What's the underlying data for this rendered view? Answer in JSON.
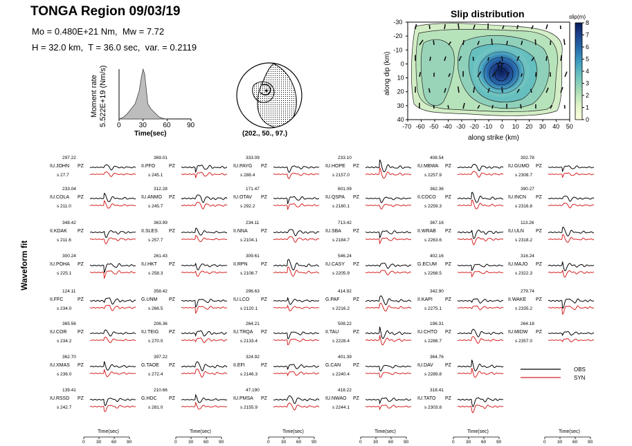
{
  "header": {
    "title": "TONGA Region 09/03/19",
    "mo_label": "Mo = 0.480E+21 Nm,",
    "mw_label": "Mw = 7.72",
    "h_label": "H = 32.0 km,",
    "t_label": "T = 36.0 sec,",
    "var_label": "var. = 0.2119"
  },
  "moment_rate": {
    "ylabel_line1": "Moment rate",
    "ylabel_line2": "5.522E+19 (Nm/s)",
    "xlabel": "Time(sec)",
    "xticks": [
      "0",
      "30",
      "60",
      "90"
    ],
    "xlim": [
      0,
      90
    ]
  },
  "mechanism": {
    "label": "(202., 50., 97.)"
  },
  "slip": {
    "title": "Slip distribution",
    "colorbar_label": "slip(m)",
    "colorbar_ticks": [
      "8",
      "7",
      "6",
      "5",
      "4",
      "3",
      "2",
      "1",
      "0"
    ],
    "xlabel": "along strike (km)",
    "ylabel": "along dip (km)",
    "xticks": [
      "-70",
      "-60",
      "-50",
      "-40",
      "-30",
      "-20",
      "-10",
      "0",
      "10",
      "20",
      "30",
      "40",
      "50"
    ],
    "yticks": [
      "-30",
      "-20",
      "-10",
      "0",
      "10",
      "20",
      "30",
      "40"
    ],
    "colors": {
      "low": "#e8f6d8",
      "mid": "#7fcdbb",
      "high": "#1d3b7a",
      "top": "#081d58"
    }
  },
  "waveform_label": "Waveform fit",
  "legend": {
    "obs": "OBS",
    "syn": "SYN",
    "obs_color": "#000000",
    "syn_color": "#d62020"
  },
  "time_axis": {
    "label": "Time(sec)",
    "ticks": [
      "0",
      "30",
      "60",
      "90"
    ]
  },
  "chart_data": [
    {
      "type": "area",
      "title": "",
      "xlabel": "Time(sec)",
      "ylabel": "Moment rate 5.522E+19 (Nm/s)",
      "xlim": [
        0,
        90
      ],
      "ylim": [
        0,
        1
      ],
      "x": [
        0,
        5,
        10,
        15,
        20,
        25,
        28,
        30,
        32,
        34,
        36,
        40,
        45,
        50,
        55,
        60
      ],
      "values": [
        0,
        0.03,
        0.1,
        0.2,
        0.3,
        0.55,
        0.85,
        1.0,
        0.9,
        0.6,
        0.3,
        0.2,
        0.12,
        0.04,
        0.01,
        0
      ]
    },
    {
      "type": "heatmap",
      "title": "Slip distribution",
      "xlabel": "along strike (km)",
      "ylabel": "along dip (km)",
      "xlim": [
        -70,
        50
      ],
      "ylim": [
        -30,
        40
      ],
      "colorbar": {
        "label": "slip(m)",
        "range": [
          0,
          8
        ]
      },
      "peak": {
        "x": 0,
        "y": 10,
        "value": 7.5
      },
      "hypocenter": {
        "x": 0,
        "y": 0
      }
    },
    {
      "type": "line",
      "title": "Waveform fit",
      "series_names": [
        "OBS",
        "SYN"
      ],
      "stations": [
        {
          "name": "IU.JOHN",
          "comp": "PZ",
          "amp": "297.22",
          "az": "s 27.7"
        },
        {
          "name": "IU.COLA",
          "comp": "PZ",
          "amp": "233.04",
          "az": "s 211.0"
        },
        {
          "name": "II.KDAK",
          "comp": "PZ",
          "amp": "348.42",
          "az": "s 211.6"
        },
        {
          "name": "IU.POHA",
          "comp": "PZ",
          "amp": "300.24",
          "az": "s 225.1"
        },
        {
          "name": "II.FFC",
          "comp": "PZ",
          "amp": "124.11",
          "az": "s 234.0"
        },
        {
          "name": "IU.COR",
          "comp": "PZ",
          "amp": "365.56",
          "az": "s 234.2"
        },
        {
          "name": "IU.XMAS",
          "comp": "PZ",
          "amp": "362.70",
          "az": "s 236.0"
        },
        {
          "name": "IU.RSSD",
          "comp": "PZ",
          "amp": "139.41",
          "az": "s 242.7"
        },
        {
          "name": "II.PFO",
          "comp": "PZ",
          "amp": "369.01",
          "az": "s 245.1"
        },
        {
          "name": "IU.ANMO",
          "comp": "PZ",
          "amp": "312.28",
          "az": "s 245.7"
        },
        {
          "name": "II.SLES",
          "comp": "PZ",
          "amp": "363.99",
          "az": "s 257.7"
        },
        {
          "name": "IU.HKT",
          "comp": "PZ",
          "amp": "261.43",
          "az": "s 258.3"
        },
        {
          "name": "G.UNM",
          "comp": "PZ",
          "amp": "358.42",
          "az": "s 266.5"
        },
        {
          "name": "IU.TEIG",
          "comp": "PZ",
          "amp": "206.36",
          "az": "s 270.0"
        },
        {
          "name": "G.TAOE",
          "comp": "PZ",
          "amp": "397.22",
          "az": "s 272.4"
        },
        {
          "name": "G.HDC",
          "comp": "PZ",
          "amp": "210.66",
          "az": "s 281.0"
        },
        {
          "name": "IU.PAYG",
          "comp": "PZ",
          "amp": "333.09",
          "az": "s 288.4"
        },
        {
          "name": "IU.OTAV",
          "comp": "PZ",
          "amp": "171.47",
          "az": "s 292.2"
        },
        {
          "name": "II.NNA",
          "comp": "PZ",
          "amp": "234.11",
          "az": "s 2104.1"
        },
        {
          "name": "II.RPN",
          "comp": "PZ",
          "amp": "309.61",
          "az": "s 2108.7"
        },
        {
          "name": "IU.LCO",
          "comp": "PZ",
          "amp": "296.63",
          "az": "s 2120.1"
        },
        {
          "name": "IU.TRQA",
          "comp": "PZ",
          "amp": "264.21",
          "az": "s 2133.4"
        },
        {
          "name": "II.EFI",
          "comp": "PZ",
          "amp": "324.92",
          "az": "s 2146.3"
        },
        {
          "name": "IU.PMSA",
          "comp": "PZ",
          "amp": "47.190",
          "az": "s 2155.9"
        },
        {
          "name": "IU.HOPE",
          "comp": "PZ",
          "amp": "233.10",
          "az": "s 2157.0"
        },
        {
          "name": "IU.QSPA",
          "comp": "PZ",
          "amp": "601.09",
          "az": "s 2180.1"
        },
        {
          "name": "IU.SBA",
          "comp": "PZ",
          "amp": "713.42",
          "az": "s 2184.7"
        },
        {
          "name": "IU.CASY",
          "comp": "PZ",
          "amp": "546.24",
          "az": "s 2205.9"
        },
        {
          "name": "G.PAF",
          "comp": "PZ",
          "amp": "414.92",
          "az": "s 2216.2"
        },
        {
          "name": "II.TAU",
          "comp": "PZ",
          "amp": "508.22",
          "az": "s 2228.4"
        },
        {
          "name": "G.CAN",
          "comp": "PZ",
          "amp": "401.39",
          "az": "s 2240.4"
        },
        {
          "name": "IU.NWAO",
          "comp": "PZ",
          "amp": "418.22",
          "az": "s 2244.1"
        },
        {
          "name": "IU.MBWA",
          "comp": "PZ",
          "amp": "408.54",
          "az": "s 2257.9"
        },
        {
          "name": "II.COCO",
          "comp": "PZ",
          "amp": "362.36",
          "az": "s 2259.3"
        },
        {
          "name": "II.WRAB",
          "comp": "PZ",
          "amp": "367.16",
          "az": "s 2263.6"
        },
        {
          "name": "G.ECUM",
          "comp": "PZ",
          "amp": "402.16",
          "az": "s 2268.5"
        },
        {
          "name": "II.KAPI",
          "comp": "PZ",
          "amp": "342.90",
          "az": "s 2275.1"
        },
        {
          "name": "IU.CHTO",
          "comp": "PZ",
          "amp": "196.31",
          "az": "s 2288.7"
        },
        {
          "name": "IU.DAV",
          "comp": "PZ",
          "amp": "364.76",
          "az": "s 2289.8"
        },
        {
          "name": "IU.TATO",
          "comp": "PZ",
          "amp": "318.41",
          "az": "s 2303.8"
        },
        {
          "name": "IU.GUMO",
          "comp": "PZ",
          "amp": "302.78",
          "az": "s 2308.7"
        },
        {
          "name": "IU.INCN",
          "comp": "PZ",
          "amp": "390.27",
          "az": "s 2316.8"
        },
        {
          "name": "IU.ULN",
          "comp": "PZ",
          "amp": "113.26",
          "az": "s 2318.2"
        },
        {
          "name": "IU.MAJO",
          "comp": "PZ",
          "amp": "316.24",
          "az": "s 2322.3"
        },
        {
          "name": "II.WAKE",
          "comp": "PZ",
          "amp": "279.74",
          "az": "s 2335.2"
        },
        {
          "name": "IU.MIDW",
          "comp": "PZ",
          "amp": "264.18",
          "az": "s 2357.0"
        }
      ]
    }
  ]
}
